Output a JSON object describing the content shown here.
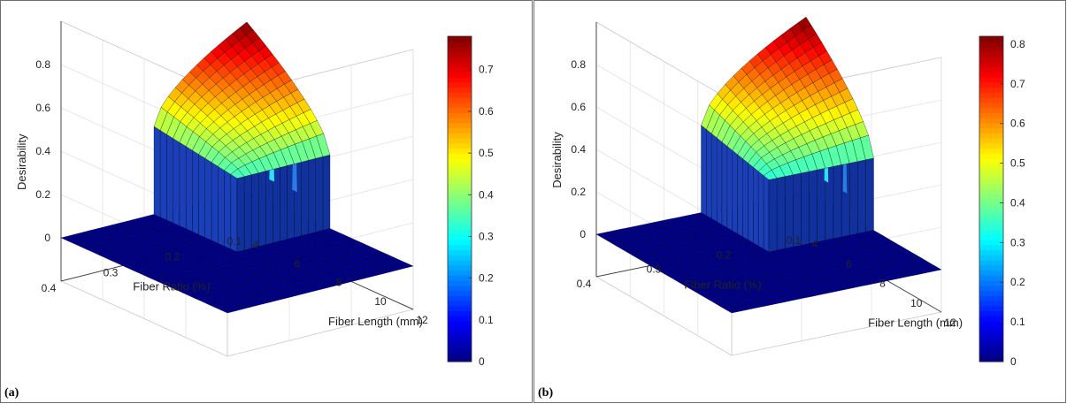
{
  "figure": {
    "panels": [
      {
        "letter": "(a)",
        "colorbar_ticks": [
          "0",
          "0.1",
          "0.2",
          "0.3",
          "0.4",
          "0.5",
          "0.6",
          "0.7"
        ]
      },
      {
        "letter": "(b)",
        "colorbar_ticks": [
          "0",
          "0.1",
          "0.2",
          "0.3",
          "0.4",
          "0.5",
          "0.6",
          "0.7",
          "0.8"
        ]
      }
    ]
  },
  "chart_data": [
    {
      "type": "surface",
      "zlabel": "Desirability",
      "xlabel": "Fiber Length (mm)",
      "ylabel": "Fiber Ratio (%)",
      "x_ticks": [
        4,
        6,
        8,
        10,
        12
      ],
      "y_ticks": [
        0.1,
        0.2,
        0.3,
        0.4
      ],
      "z_ticks": [
        0,
        0.2,
        0.4,
        0.6,
        0.8
      ],
      "colormap": "jet",
      "colorbar_range": [
        0,
        0.78
      ],
      "colorbar_ticks": [
        0,
        0.1,
        0.2,
        0.3,
        0.4,
        0.5,
        0.6,
        0.7
      ],
      "plateau": {
        "x_range": [
          4,
          8
        ],
        "y_range": [
          0.1,
          0.25
        ],
        "z_base": 0.34,
        "z_max": 0.78
      },
      "colors": {
        "low": "#00008f",
        "high": "#800000"
      }
    },
    {
      "type": "surface",
      "zlabel": "Desirability",
      "xlabel": "Fiber Length (mm)",
      "ylabel": "Fiber Ratio (%)",
      "x_ticks": [
        4,
        6,
        8,
        10,
        12
      ],
      "y_ticks": [
        0.1,
        0.2,
        0.3,
        0.4
      ],
      "z_ticks": [
        0,
        0.2,
        0.4,
        0.6,
        0.8
      ],
      "colormap": "jet",
      "colorbar_range": [
        0,
        0.82
      ],
      "colorbar_ticks": [
        0,
        0.1,
        0.2,
        0.3,
        0.4,
        0.5,
        0.6,
        0.7,
        0.8
      ],
      "plateau": {
        "x_range": [
          4,
          8
        ],
        "y_range": [
          0.1,
          0.25
        ],
        "z_base": 0.34,
        "z_max": 0.82
      },
      "colors": {
        "low": "#00008f",
        "high": "#800000"
      }
    }
  ]
}
